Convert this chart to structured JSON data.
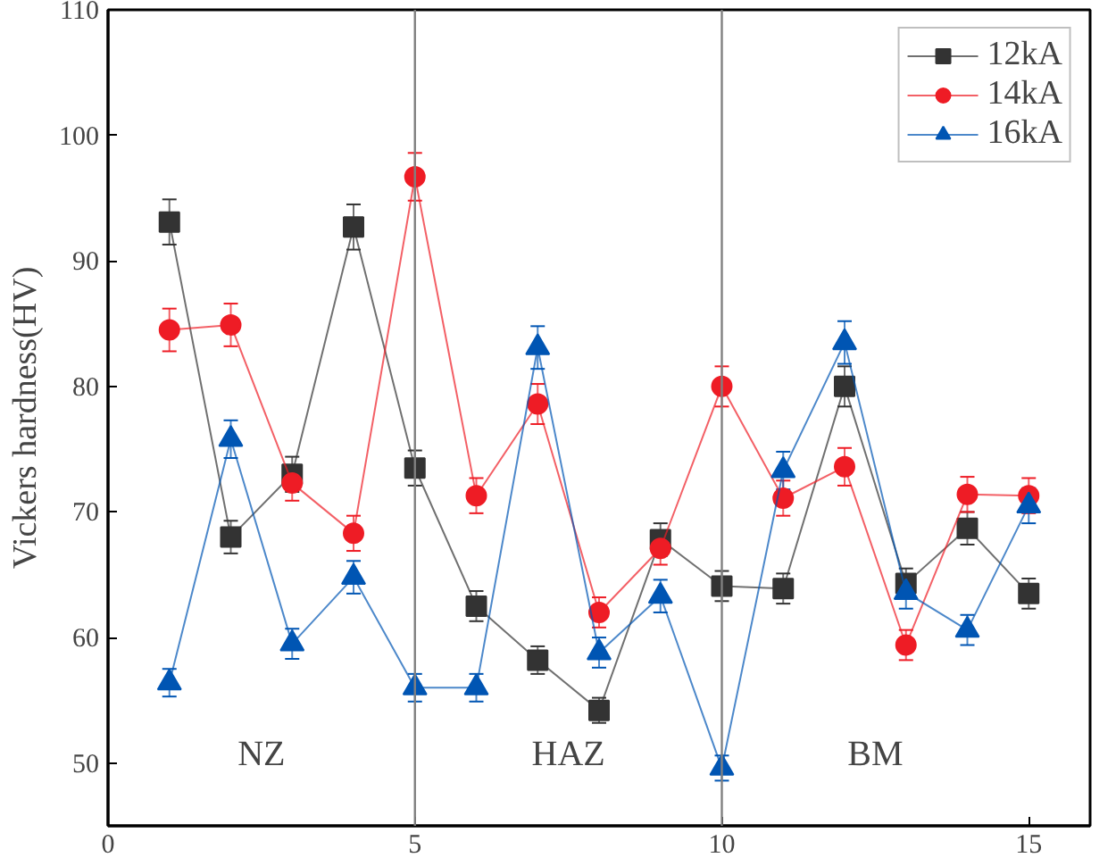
{
  "chart_data": {
    "type": "line",
    "ylabel": "Vickers hardness(HV)",
    "x": [
      1,
      2,
      3,
      4,
      5,
      6,
      7,
      8,
      9,
      10,
      11,
      12,
      13,
      14,
      15
    ],
    "xlim": [
      0,
      16
    ],
    "xticks": [
      0,
      5,
      10,
      15
    ],
    "ylim": [
      45,
      110
    ],
    "yticks": [
      50,
      60,
      70,
      80,
      90,
      100,
      110
    ],
    "grid": false,
    "legend": "top right",
    "line_style": "solid",
    "series": [
      {
        "name": "12kA",
        "color": "#333333",
        "marker": "square",
        "values": [
          93.1,
          68.0,
          73.0,
          92.7,
          73.5,
          62.5,
          58.2,
          54.2,
          67.8,
          64.1,
          63.9,
          80.0,
          64.3,
          68.7,
          63.5
        ],
        "errors": [
          1.8,
          1.3,
          1.4,
          1.8,
          1.4,
          1.2,
          1.1,
          1.0,
          1.3,
          1.2,
          1.2,
          1.6,
          1.2,
          1.3,
          1.2
        ]
      },
      {
        "name": "14kA",
        "color": "#ee1c25",
        "marker": "circle",
        "values": [
          84.5,
          84.9,
          72.3,
          68.3,
          96.7,
          71.3,
          78.6,
          62.0,
          67.1,
          80.0,
          71.1,
          73.6,
          59.4,
          71.4,
          71.3
        ],
        "errors": [
          1.7,
          1.7,
          1.4,
          1.4,
          1.9,
          1.4,
          1.6,
          1.2,
          1.3,
          1.6,
          1.4,
          1.5,
          1.2,
          1.4,
          1.4
        ]
      },
      {
        "name": "16kA",
        "color": "#0055b3",
        "marker": "triangle",
        "values": [
          56.4,
          75.8,
          59.5,
          64.8,
          56.0,
          56.0,
          83.1,
          58.8,
          63.3,
          49.6,
          73.3,
          83.5,
          63.6,
          60.6,
          70.5
        ],
        "errors": [
          1.1,
          1.5,
          1.2,
          1.3,
          1.1,
          1.1,
          1.7,
          1.2,
          1.3,
          1.0,
          1.5,
          1.7,
          1.3,
          1.2,
          1.4
        ]
      }
    ],
    "ref_lines": [
      {
        "axis": "x",
        "value": 5,
        "color": "#808080"
      },
      {
        "axis": "x",
        "value": 10,
        "color": "#808080"
      }
    ],
    "annotations": [
      "NZ",
      "HAZ",
      "BM"
    ]
  }
}
